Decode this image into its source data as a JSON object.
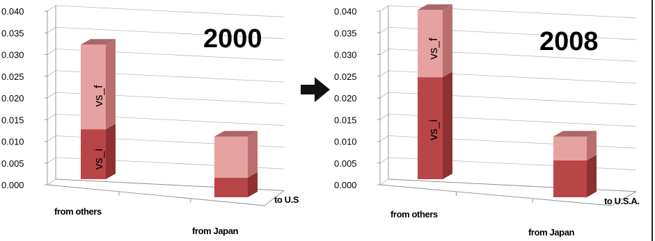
{
  "colors": {
    "vs_i_front": "#b94646",
    "vs_i_side": "#8f2f2f",
    "vs_i_top": "#c86a6a",
    "vs_f_front": "#e6a1a1",
    "vs_f_side": "#b96f6f",
    "vs_f_top": "#a96767",
    "arrow": "#111111",
    "border": "#222222"
  },
  "arrow": {
    "icon": "arrow-right-icon"
  },
  "chart_data": [
    {
      "type": "bar",
      "stacked": true,
      "three_d": true,
      "title": "2000",
      "categories": [
        "from others",
        "from Japan"
      ],
      "depth_label": "to U.S.A.",
      "yticks": [
        "0.040",
        "0.035",
        "0.030",
        "0.025",
        "0.020",
        "0.015",
        "0.010",
        "0.005",
        "0.000"
      ],
      "ylim": [
        0,
        0.04
      ],
      "series": [
        {
          "name": "vs_i",
          "values": [
            0.0115,
            0.0045
          ]
        },
        {
          "name": "vs_f",
          "values": [
            0.0195,
            0.0095
          ]
        }
      ]
    },
    {
      "type": "bar",
      "stacked": true,
      "three_d": true,
      "title": "2008",
      "categories": [
        "from others",
        "from Japan"
      ],
      "depth_label": "to U.S.A.",
      "yticks": [
        "0.040",
        "0.035",
        "0.030",
        "0.025",
        "0.020",
        "0.015",
        "0.010",
        "0.005",
        "0.000"
      ],
      "ylim": [
        0,
        0.04
      ],
      "series": [
        {
          "name": "vs_i",
          "values": [
            0.0235,
            0.0085
          ]
        },
        {
          "name": "vs_f",
          "values": [
            0.0155,
            0.0055
          ]
        }
      ]
    }
  ]
}
